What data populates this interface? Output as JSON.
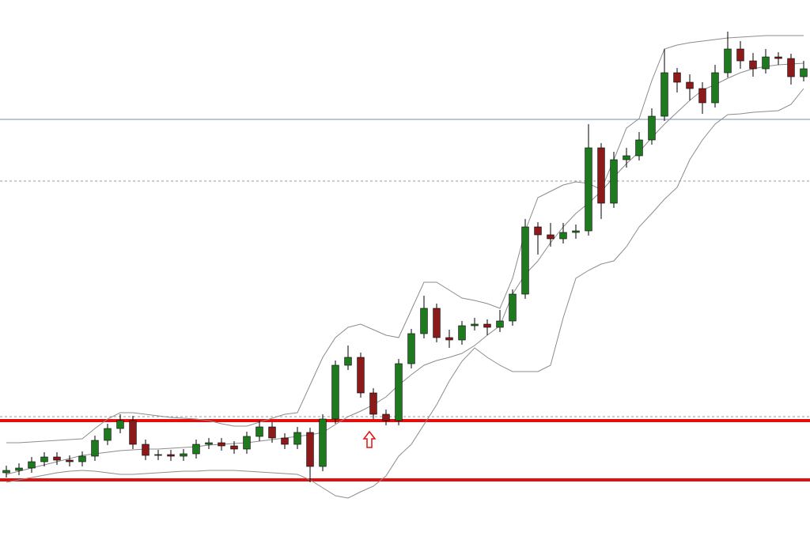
{
  "chart_data": {
    "type": "candlestick",
    "ylim": [
      0,
      702
    ],
    "up_color": "#1f7a1f",
    "down_color": "#8b1a1a",
    "wick_color": "#000000",
    "open": [
      104,
      107,
      110,
      118,
      124,
      120,
      118,
      125,
      145,
      160,
      170,
      140,
      126,
      127,
      125,
      128,
      140,
      142,
      138,
      134,
      150,
      162,
      148,
      140,
      155,
      112,
      172,
      240,
      250,
      205,
      178,
      170,
      242,
      280,
      312,
      275,
      272,
      290,
      292,
      288,
      296,
      330,
      415,
      405,
      400,
      408,
      410,
      515,
      445,
      500,
      505,
      525,
      555,
      610,
      598,
      590,
      572,
      610,
      640,
      625,
      615,
      630,
      628,
      605
    ],
    "high": [
      113,
      116,
      124,
      130,
      130,
      126,
      131,
      151,
      166,
      178,
      176,
      146,
      133,
      133,
      134,
      146,
      148,
      148,
      144,
      156,
      170,
      168,
      154,
      162,
      161,
      178,
      246,
      265,
      256,
      211,
      184,
      248,
      286,
      328,
      318,
      285,
      296,
      300,
      298,
      310,
      336,
      425,
      421,
      420,
      420,
      418,
      545,
      521,
      510,
      515,
      535,
      565,
      640,
      616,
      608,
      598,
      620,
      662,
      650,
      635,
      640,
      636,
      634,
      625
    ],
    "low": [
      98,
      101,
      104,
      112,
      114,
      112,
      112,
      119,
      139,
      154,
      134,
      120,
      120,
      119,
      119,
      122,
      134,
      132,
      128,
      128,
      144,
      142,
      134,
      134,
      92,
      106,
      166,
      234,
      199,
      172,
      164,
      164,
      236,
      274,
      269,
      262,
      266,
      284,
      278,
      282,
      290,
      324,
      380,
      390,
      394,
      400,
      404,
      425,
      439,
      490,
      499,
      519,
      549,
      585,
      575,
      558,
      566,
      604,
      615,
      605,
      609,
      620,
      595,
      599
    ],
    "close": [
      107,
      110,
      118,
      124,
      120,
      118,
      125,
      145,
      160,
      170,
      140,
      126,
      127,
      125,
      128,
      140,
      142,
      138,
      134,
      150,
      162,
      148,
      140,
      155,
      112,
      172,
      240,
      250,
      205,
      178,
      170,
      242,
      280,
      312,
      275,
      272,
      290,
      292,
      288,
      296,
      330,
      415,
      405,
      400,
      408,
      410,
      515,
      445,
      500,
      505,
      525,
      555,
      610,
      598,
      590,
      572,
      610,
      640,
      625,
      615,
      630,
      628,
      605,
      615
    ],
    "bands": [
      {
        "color": "#8c8c8c",
        "values": [
          142,
          142,
          143,
          144,
          145,
          146,
          147,
          160,
          172,
          180,
          180,
          178,
          176,
          174,
          173,
          172,
          170,
          166,
          163,
          163,
          168,
          173,
          178,
          180,
          215,
          250,
          275,
          288,
          292,
          285,
          278,
          275,
          310,
          345,
          345,
          335,
          325,
          322,
          318,
          312,
          350,
          410,
          452,
          460,
          468,
          472,
          470,
          462,
          500,
          540,
          552,
          600,
          640,
          645,
          648,
          650,
          652,
          654,
          655,
          656,
          657,
          657,
          657,
          657
        ]
      },
      {
        "color": "#8c8c8c",
        "values": [
          102,
          106,
          110,
          114,
          118,
          122,
          126,
          128,
          130,
          132,
          133,
          134,
          134,
          135,
          136,
          137,
          139,
          140,
          141,
          142,
          144,
          146,
          148,
          150,
          152,
          155,
          165,
          175,
          182,
          190,
          200,
          215,
          228,
          240,
          246,
          250,
          255,
          265,
          278,
          290,
          330,
          355,
          372,
          395,
          415,
          432,
          445,
          460,
          478,
          495,
          510,
          528,
          545,
          560,
          575,
          588,
          595,
          603,
          610,
          615,
          618,
          620,
          621,
          622
        ]
      },
      {
        "color": "#8c8c8c",
        "values": [
          92,
          95,
          98,
          101,
          104,
          106,
          107,
          106,
          104,
          102,
          102,
          103,
          104,
          105,
          106,
          106,
          107,
          107,
          107,
          106,
          105,
          104,
          103,
          102,
          95,
          85,
          75,
          72,
          80,
          87,
          100,
          125,
          140,
          165,
          190,
          220,
          245,
          262,
          250,
          240,
          232,
          232,
          232,
          240,
          300,
          350,
          360,
          368,
          372,
          390,
          415,
          432,
          450,
          465,
          500,
          525,
          545,
          557,
          558,
          560,
          561,
          562,
          570,
          590
        ]
      }
    ],
    "levels": [
      {
        "value": 551,
        "color": "#6b8fb3",
        "style": "solid",
        "width": 1
      },
      {
        "value": 473,
        "color": "#9a9a9a",
        "style": "dotted",
        "width": 1
      },
      {
        "value": 175,
        "color": "#9a9a9a",
        "style": "dotted",
        "width": 1
      },
      {
        "value": 170,
        "color": "#e01010",
        "style": "solid",
        "width": 4
      },
      {
        "value": 95,
        "color": "#e01010",
        "style": "solid",
        "width": 4
      }
    ]
  }
}
